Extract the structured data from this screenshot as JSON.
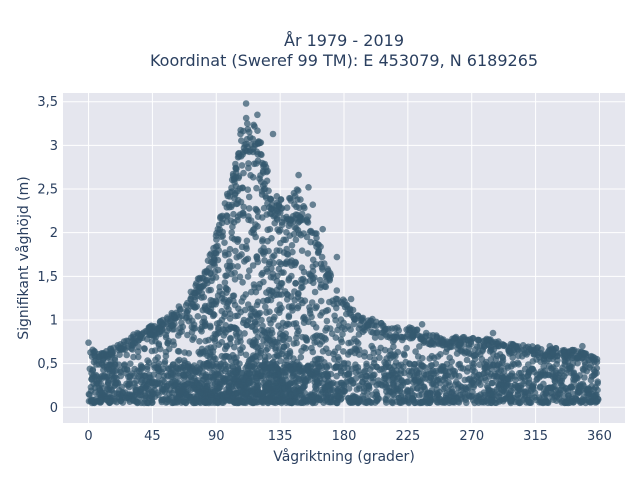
{
  "chart_data": {
    "type": "scatter",
    "title_line1": "År 1979 - 2019",
    "title_line2": "Koordinat (Sweref 99 TM): E 453079, N 6189265",
    "xlabel": "Vågriktning (grader)",
    "ylabel": "Signifikant våghöjd (m)",
    "xlim": [
      -18,
      378
    ],
    "ylim": [
      -0.18,
      3.6
    ],
    "xticks": [
      0,
      45,
      90,
      135,
      180,
      225,
      270,
      315,
      360
    ],
    "xtick_labels": [
      "0",
      "45",
      "90",
      "135",
      "180",
      "225",
      "270",
      "315",
      "360"
    ],
    "yticks": [
      0,
      0.5,
      1,
      1.5,
      2,
      2.5,
      3,
      3.5
    ],
    "ytick_labels": [
      "0",
      "0,5",
      "1",
      "1,5",
      "2",
      "2,5",
      "3",
      "3,5"
    ],
    "grid": true,
    "point_color": "#34596f",
    "background_color": "#e5e6ee",
    "upper_envelope": {
      "x": [
        0,
        10,
        20,
        30,
        40,
        50,
        60,
        70,
        80,
        90,
        100,
        105,
        110,
        115,
        120,
        125,
        130,
        135,
        140,
        145,
        150,
        155,
        160,
        170,
        180,
        190,
        200,
        210,
        225,
        240,
        255,
        270,
        285,
        300,
        315,
        330,
        345,
        360
      ],
      "y": [
        0.7,
        0.62,
        0.72,
        0.82,
        0.9,
        0.98,
        1.1,
        1.28,
        1.55,
        2.0,
        2.6,
        2.95,
        3.45,
        3.3,
        3.15,
        2.8,
        2.5,
        2.4,
        2.35,
        2.55,
        2.45,
        2.2,
        2.1,
        1.55,
        1.25,
        1.05,
        1.0,
        0.95,
        0.92,
        0.85,
        0.8,
        0.82,
        0.78,
        0.72,
        0.7,
        0.68,
        0.65,
        0.6
      ]
    },
    "outliers": [
      {
        "x": 111,
        "y": 3.48
      },
      {
        "x": 119,
        "y": 3.35
      },
      {
        "x": 130,
        "y": 3.13
      },
      {
        "x": 148,
        "y": 2.66
      },
      {
        "x": 155,
        "y": 2.52
      },
      {
        "x": 158,
        "y": 2.32
      },
      {
        "x": 165,
        "y": 2.04
      },
      {
        "x": 175,
        "y": 1.72
      },
      {
        "x": 185,
        "y": 1.24
      },
      {
        "x": 200,
        "y": 1.01
      },
      {
        "x": 235,
        "y": 0.95
      },
      {
        "x": 262,
        "y": 0.78
      },
      {
        "x": 285,
        "y": 0.85
      },
      {
        "x": 325,
        "y": 0.7
      },
      {
        "x": 348,
        "y": 0.7
      },
      {
        "x": 0,
        "y": 0.74
      },
      {
        "x": 45,
        "y": 0.92
      },
      {
        "x": 74,
        "y": 1.31
      },
      {
        "x": 83,
        "y": 1.45
      }
    ]
  }
}
